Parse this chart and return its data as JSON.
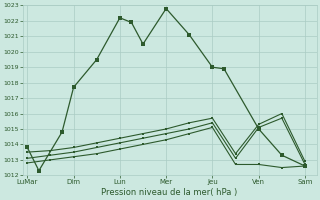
{
  "title": "Pression niveau de la mer( hPa )",
  "bg_color": "#cce8e0",
  "grid_color": "#aaccc4",
  "line_color": "#2d5a2d",
  "ylim": [
    1012,
    1023
  ],
  "yticks": [
    1012,
    1013,
    1014,
    1015,
    1016,
    1017,
    1018,
    1019,
    1020,
    1021,
    1022,
    1023
  ],
  "x_labels": [
    "LuMar",
    "Dim",
    "Lun",
    "Mer",
    "Jeu",
    "Ven",
    "Sam"
  ],
  "x_positions": [
    0,
    2,
    4,
    6,
    8,
    10,
    12
  ],
  "line1_x": [
    0,
    0.5,
    1.5,
    2,
    3,
    4,
    4.5,
    5,
    6,
    7,
    8,
    8.5,
    10,
    11,
    12
  ],
  "line1_y": [
    1013.8,
    1012.3,
    1014.8,
    1017.7,
    1019.5,
    1022.2,
    1021.9,
    1020.5,
    1022.8,
    1021.1,
    1019.0,
    1018.9,
    1015.0,
    1013.3,
    1012.6
  ],
  "line2_x": [
    0,
    1,
    2,
    3,
    4,
    5,
    6,
    7,
    8,
    9,
    10,
    11,
    12
  ],
  "line2_y": [
    1012.8,
    1013.0,
    1013.2,
    1013.4,
    1013.7,
    1014.0,
    1014.3,
    1014.7,
    1015.1,
    1012.7,
    1012.7,
    1012.5,
    1012.6
  ],
  "line3_x": [
    0,
    1,
    2,
    3,
    4,
    5,
    6,
    7,
    8,
    9,
    10,
    11,
    12
  ],
  "line3_y": [
    1013.1,
    1013.3,
    1013.5,
    1013.8,
    1014.1,
    1014.4,
    1014.7,
    1015.0,
    1015.4,
    1013.1,
    1015.1,
    1015.7,
    1012.7
  ],
  "line4_x": [
    0,
    1,
    2,
    3,
    4,
    5,
    6,
    7,
    8,
    9,
    10,
    11,
    12
  ],
  "line4_y": [
    1013.5,
    1013.6,
    1013.8,
    1014.1,
    1014.4,
    1014.7,
    1015.0,
    1015.4,
    1015.7,
    1013.4,
    1015.3,
    1016.0,
    1012.9
  ]
}
